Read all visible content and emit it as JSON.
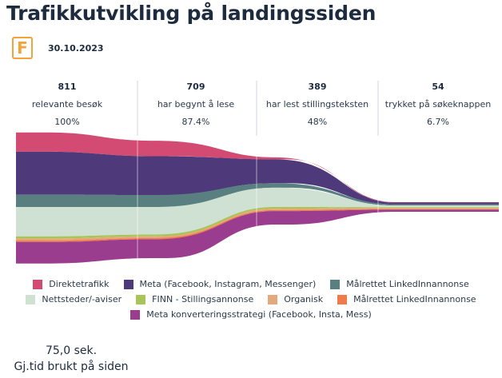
{
  "title": "Trafikkutvikling på landingssiden",
  "logo_letter": "F",
  "date": "30.10.2023",
  "stages": [
    {
      "value": "811",
      "label": "relevante besøk",
      "percent": "100%"
    },
    {
      "value": "709",
      "label": "har begynt å lese",
      "percent": "87.4%"
    },
    {
      "value": "389",
      "label": "har lest stillingsteksten",
      "percent": "48%"
    },
    {
      "value": "54",
      "label": "trykket på søkeknappen",
      "percent": "6.7%"
    }
  ],
  "chart_data": {
    "type": "area",
    "categories": [
      "relevante besøk",
      "har begynt å lese",
      "har lest stillingsteksten",
      "trykket på søkeknappen"
    ],
    "series": [
      {
        "name": "Direktetrafikk",
        "color": "#d34b72",
        "values": [
          93,
          75,
          10,
          2
        ]
      },
      {
        "name": "Meta (Facebook, Instagram, Messenger)",
        "color": "#4e3a7a",
        "values": [
          208,
          187,
          115,
          8
        ]
      },
      {
        "name": "Målrettet LinkedInnannonse",
        "color": "#5a7f80",
        "values": [
          59,
          58,
          22,
          6
        ]
      },
      {
        "name": "Nettsteder/-aviser",
        "color": "#cfe1d2",
        "values": [
          142,
          133,
          93,
          8
        ]
      },
      {
        "name": "FINN - Stillingsannonse",
        "color": "#a9c55a",
        "values": [
          10,
          9,
          8,
          4
        ]
      },
      {
        "name": "Organisk",
        "color": "#e3a97a",
        "values": [
          10,
          8,
          7,
          4
        ]
      },
      {
        "name": "Målrettet LinkedInnannonse",
        "color": "#f07a4a",
        "values": [
          7,
          6,
          5,
          4
        ]
      },
      {
        "name": "Meta konverteringsstrategi (Facebook, Insta, Mess)",
        "color": "#9b3d8e",
        "values": [
          104,
          91,
          65,
          10
        ]
      }
    ]
  },
  "legend_rows": [
    [
      {
        "label": "Direktetrafikk",
        "color": "#d34b72"
      },
      {
        "label": "Meta (Facebook, Instagram, Messenger)",
        "color": "#4e3a7a"
      },
      {
        "label": "Målrettet LinkedInnannonse",
        "color": "#5a7f80"
      }
    ],
    [
      {
        "label": "Nettsteder/-aviser",
        "color": "#cfe1d2"
      },
      {
        "label": "FINN - Stillingsannonse",
        "color": "#a9c55a"
      },
      {
        "label": "Organisk",
        "color": "#e3a97a"
      },
      {
        "label": "Målrettet LinkedInnannonse",
        "color": "#f07a4a"
      }
    ],
    [
      {
        "label": "Meta konverteringsstrategi (Facebook, Insta, Mess)",
        "color": "#9b3d8e"
      }
    ]
  ],
  "avg_time": {
    "value": "75,0 sek.",
    "label": "Gj.tid brukt på siden"
  }
}
